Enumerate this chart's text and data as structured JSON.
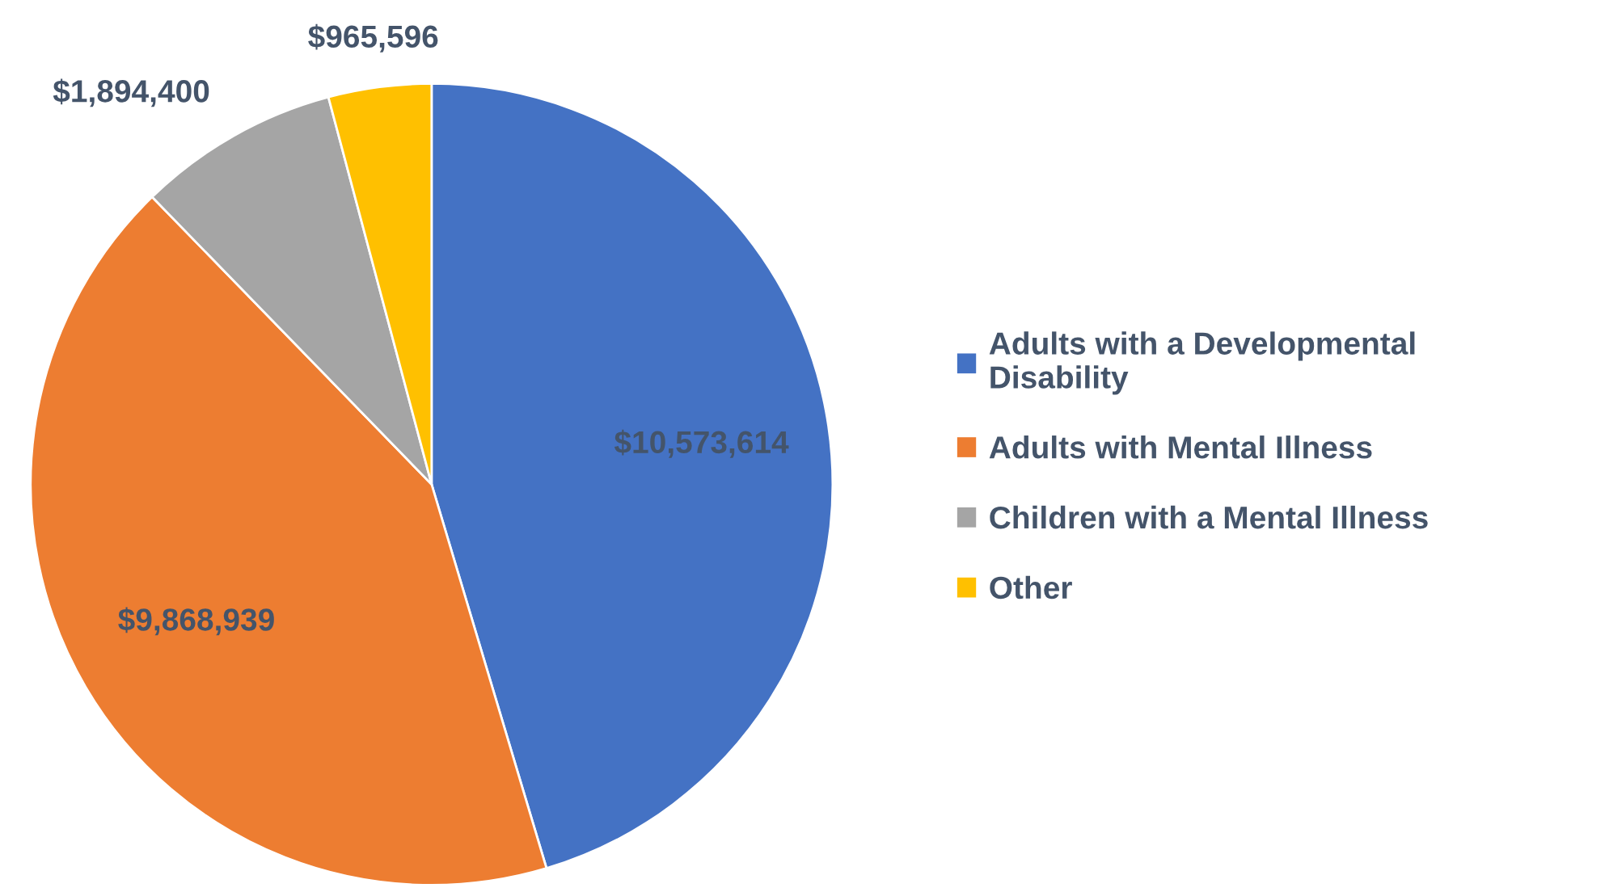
{
  "chart_data": {
    "type": "pie",
    "categories": [
      "Adults with a Developmental\nDisability",
      "Adults with Mental Illness",
      "Children with a Mental Illness",
      "Other"
    ],
    "values": [
      10573614,
      9868939,
      1894400,
      965596
    ],
    "value_labels": [
      "$10,573,614",
      "$9,868,939",
      "$1,894,400",
      "$965,596"
    ],
    "colors": [
      "#4472c4",
      "#ed7d31",
      "#a5a5a5",
      "#ffc000"
    ],
    "legend": "right"
  }
}
